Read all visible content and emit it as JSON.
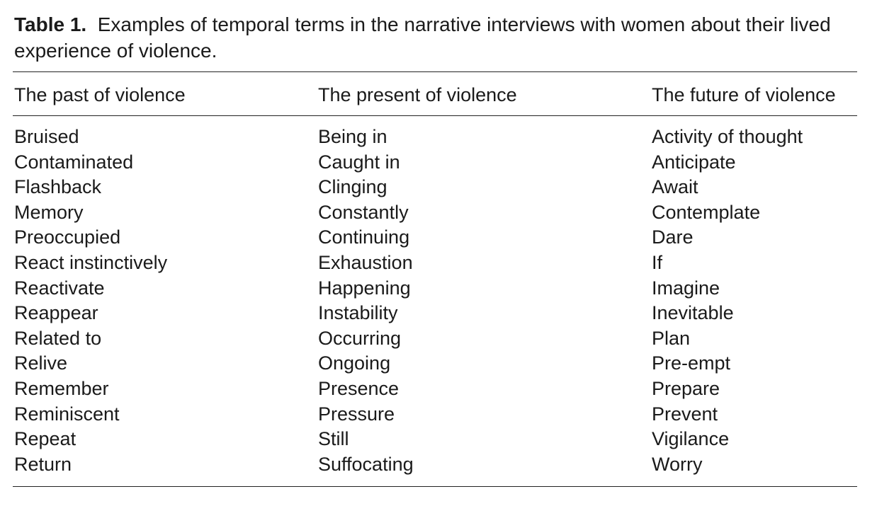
{
  "caption": {
    "label": "Table 1.",
    "text": "Examples of temporal terms in the narrative interviews with women about their lived experience of violence."
  },
  "table": {
    "columns": [
      {
        "header": "The past of violence",
        "cells": [
          "Bruised",
          "Contaminated",
          "Flashback",
          "Memory",
          "Preoccupied",
          "React instinctively",
          "Reactivate",
          "Reappear",
          "Related to",
          "Relive",
          "Remember",
          "Reminiscent",
          "Repeat",
          "Return"
        ]
      },
      {
        "header": "The present of violence",
        "cells": [
          "Being in",
          "Caught in",
          "Clinging",
          "Constantly",
          "Continuing",
          "Exhaustion",
          "Happening",
          "Instability",
          "Occurring",
          "Ongoing",
          "Presence",
          "Pressure",
          "Still",
          "Suffocating"
        ]
      },
      {
        "header": "The future of violence",
        "cells": [
          "Activity of thought",
          "Anticipate",
          "Await",
          "Contemplate",
          "Dare",
          "If",
          "Imagine",
          "Inevitable",
          "Plan",
          "Pre-empt",
          "Prepare",
          "Prevent",
          "Vigilance",
          "Worry"
        ]
      }
    ]
  }
}
